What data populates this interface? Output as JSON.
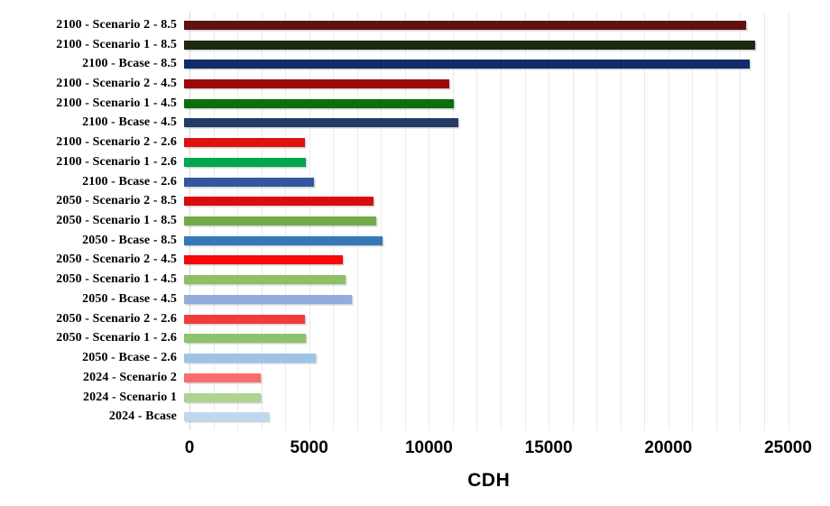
{
  "chart_data": {
    "type": "bar",
    "orientation": "horizontal",
    "title": "",
    "xlabel": "CDH",
    "ylabel": "",
    "xlim": [
      0,
      25000
    ],
    "x_ticks": [
      0,
      5000,
      10000,
      15000,
      20000,
      25000
    ],
    "minor_gridline_step": 1000,
    "grid": true,
    "legend": false,
    "categories": [
      "2100 - Scenario 2 - 8.5",
      "2100 - Scenario 1 - 8.5",
      "2100 - Bcase - 8.5",
      "2100 - Scenario 2 - 4.5",
      "2100 - Scenario 1 - 4.5",
      "2100 - Bcase - 4.5",
      "2100 - Scenario 2 - 2.6",
      "2100 - Scenario 1 - 2.6",
      "2100 - Bcase - 2.6",
      "2050 - Scenario 2 - 8.5",
      "2050 - Scenario 1 - 8.5",
      "2050 - Bcase - 8.5",
      "2050 - Scenario 2 - 4.5",
      "2050 - Scenario 1 - 4.5",
      "2050 - Bcase - 4.5",
      "2050 - Scenario 2 - 2.6",
      "2050 - Scenario 1 - 2.6",
      "2050 - Bcase - 2.6",
      "2024 - Scenario 2",
      "2024 - Scenario 1",
      "2024 - Bcase"
    ],
    "values": [
      23250,
      23650,
      23400,
      10970,
      11170,
      11360,
      4990,
      5055,
      5395,
      7840,
      7970,
      8210,
      6570,
      6675,
      6960,
      5015,
      5055,
      5455,
      3160,
      3175,
      3500
    ],
    "bar_colors": [
      "#601210",
      "#1D2912",
      "#0F2D68",
      "#9B0908",
      "#0C6E0C",
      "#223C66",
      "#E01111",
      "#00A650",
      "#33579E",
      "#DB0B0B",
      "#72AC48",
      "#3478B5",
      "#F90808",
      "#8DBF66",
      "#91ACDB",
      "#F23B3B",
      "#8DC369",
      "#9CC3E6",
      "#F96D6D",
      "#ACD391",
      "#C0D8EE"
    ]
  },
  "styles": {
    "background": "#FFFFFF",
    "gridline_color": "#EAEAEA",
    "axis_line_color": "#D6D6D6",
    "text_color": "#000000"
  }
}
